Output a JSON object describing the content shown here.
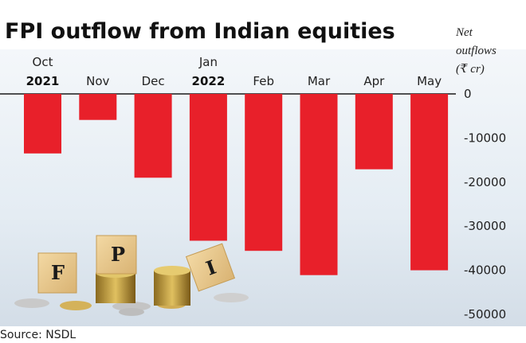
{
  "chart_data": {
    "type": "bar",
    "title": "FPI outflow from Indian equities",
    "unit_label": [
      "Net",
      "outflows",
      "(₹ cr)"
    ],
    "categories": [
      "Oct",
      "Nov",
      "Dec",
      "Jan",
      "Feb",
      "Mar",
      "Apr",
      "May"
    ],
    "year_labels": [
      "2021",
      "",
      "",
      "2022",
      "",
      "",
      "",
      ""
    ],
    "values": [
      -13500,
      -5900,
      -19000,
      -33300,
      -35600,
      -41100,
      -17100,
      -40000
    ],
    "ylim": [
      -50000,
      0
    ],
    "yticks": [
      0,
      -10000,
      -20000,
      -30000,
      -40000,
      -50000
    ],
    "ytick_labels": [
      "0",
      "-10000",
      "-20000",
      "-30000",
      "-40000",
      "-50000"
    ],
    "bar_color": "#e8202a",
    "grid": false,
    "legend": "none"
  },
  "source": "Source: NSDL",
  "illustration": {
    "blocks": [
      "F",
      "P",
      "I"
    ],
    "background": "#dde7f0"
  }
}
